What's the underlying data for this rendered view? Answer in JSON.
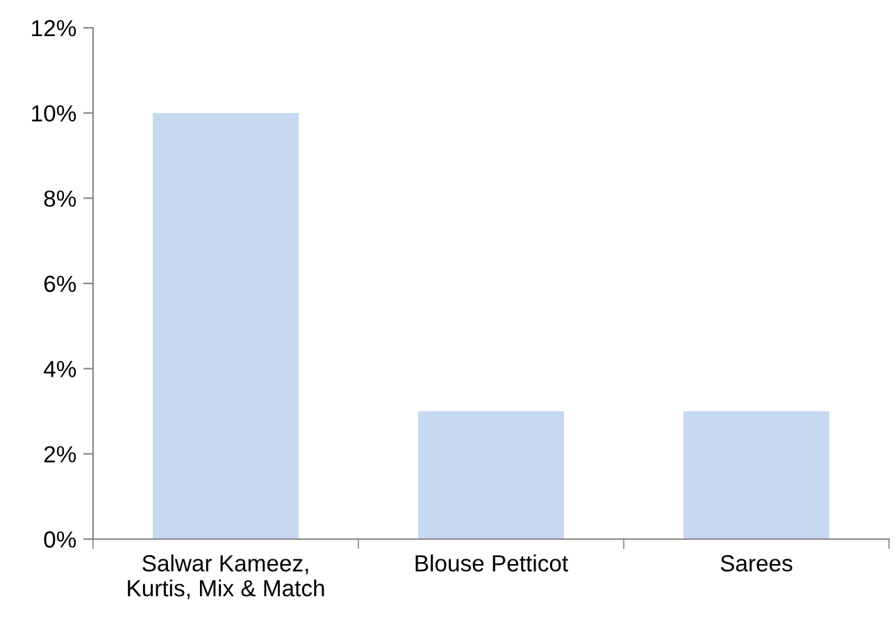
{
  "chart_data": {
    "type": "bar",
    "categories": [
      "Salwar Kameez,\nKurtis, Mix & Match",
      "Blouse Petticot",
      "Sarees"
    ],
    "values": [
      10,
      3,
      3
    ],
    "color": "#c6d9f1",
    "ylim": [
      0,
      12
    ],
    "yticks": [
      {
        "value": 0,
        "label": "0%"
      },
      {
        "value": 2,
        "label": "2%"
      },
      {
        "value": 4,
        "label": "4%"
      },
      {
        "value": 6,
        "label": "6%"
      },
      {
        "value": 8,
        "label": "8%"
      },
      {
        "value": 10,
        "label": "10%"
      },
      {
        "value": 12,
        "label": "12%"
      }
    ],
    "grid": false
  }
}
